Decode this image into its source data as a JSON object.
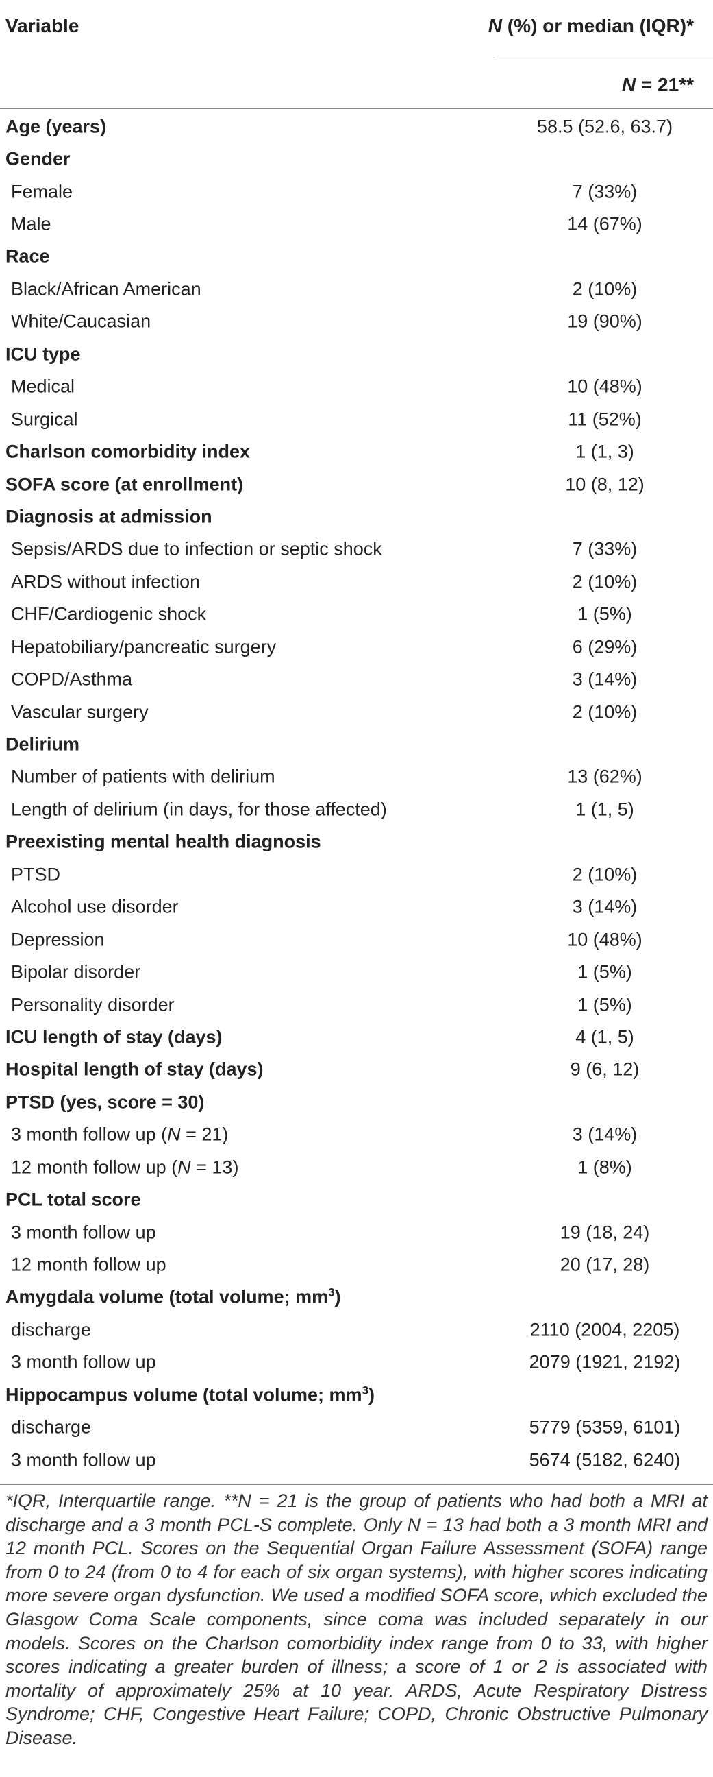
{
  "header": {
    "variable_label": "Variable",
    "stat_prefix": "N",
    "stat_suffix": " (%) or median (IQR)*",
    "n_prefix": "N",
    "n_suffix": " = 21**"
  },
  "rows": [
    {
      "type": "heading",
      "label": "Age (years)",
      "value": "58.5 (52.6, 63.7)"
    },
    {
      "type": "heading",
      "label": "Gender",
      "value": ""
    },
    {
      "type": "sub",
      "label": "Female",
      "value": "7 (33%)"
    },
    {
      "type": "sub",
      "label": "Male",
      "value": "14 (67%)"
    },
    {
      "type": "heading",
      "label": "Race",
      "value": ""
    },
    {
      "type": "sub",
      "label": "Black/African American",
      "value": "2 (10%)"
    },
    {
      "type": "sub",
      "label": "White/Caucasian",
      "value": "19 (90%)"
    },
    {
      "type": "heading",
      "label": "ICU type",
      "value": ""
    },
    {
      "type": "sub",
      "label": "Medical",
      "value": "10 (48%)"
    },
    {
      "type": "sub",
      "label": "Surgical",
      "value": "11 (52%)"
    },
    {
      "type": "heading",
      "label": "Charlson comorbidity index",
      "value": "1 (1, 3)"
    },
    {
      "type": "heading",
      "label": "SOFA score (at enrollment)",
      "value": "10 (8, 12)"
    },
    {
      "type": "heading",
      "label": "Diagnosis at admission",
      "value": ""
    },
    {
      "type": "sub",
      "label": "Sepsis/ARDS due to infection or septic shock",
      "value": "7 (33%)"
    },
    {
      "type": "sub",
      "label": "ARDS without infection",
      "value": "2 (10%)"
    },
    {
      "type": "sub",
      "label": "CHF/Cardiogenic shock",
      "value": "1 (5%)"
    },
    {
      "type": "sub",
      "label": "Hepatobiliary/pancreatic surgery",
      "value": "6 (29%)"
    },
    {
      "type": "sub",
      "label": "COPD/Asthma",
      "value": "3 (14%)"
    },
    {
      "type": "sub",
      "label": "Vascular surgery",
      "value": "2 (10%)"
    },
    {
      "type": "heading",
      "label": "Delirium",
      "value": ""
    },
    {
      "type": "sub",
      "label": "Number of patients with delirium",
      "value": "13 (62%)"
    },
    {
      "type": "sub",
      "label": "Length of delirium (in days, for those affected)",
      "value": "1 (1, 5)"
    },
    {
      "type": "heading",
      "label": "Preexisting mental health diagnosis",
      "value": ""
    },
    {
      "type": "sub",
      "label": "PTSD",
      "value": "2 (10%)"
    },
    {
      "type": "sub",
      "label": "Alcohol use disorder",
      "value": "3 (14%)"
    },
    {
      "type": "sub",
      "label": "Depression",
      "value": "10 (48%)"
    },
    {
      "type": "sub",
      "label": "Bipolar disorder",
      "value": "1 (5%)"
    },
    {
      "type": "sub",
      "label": "Personality disorder",
      "value": "1 (5%)"
    },
    {
      "type": "heading",
      "label": "ICU length of stay (days)",
      "value": "4 (1, 5)"
    },
    {
      "type": "heading",
      "label": "Hospital length of stay (days)",
      "value": "9 (6, 12)"
    },
    {
      "type": "heading",
      "label": "PTSD (yes, score = 30)",
      "value": ""
    },
    {
      "type": "sub",
      "label": "3 month follow up (",
      "label_italic": "N",
      "label_after": " = 21)",
      "value": "3 (14%)"
    },
    {
      "type": "sub",
      "label": "12 month follow up (",
      "label_italic": "N",
      "label_after": " = 13)",
      "value": "1 (8%)"
    },
    {
      "type": "heading",
      "label": "PCL total score",
      "value": ""
    },
    {
      "type": "sub",
      "label": "3 month follow up",
      "value": "19 (18, 24)"
    },
    {
      "type": "sub",
      "label": "12 month follow up",
      "value": "20 (17, 28)"
    },
    {
      "type": "heading",
      "label": "Amygdala volume (total volume; mm",
      "label_sup": "3",
      "label_after": ")",
      "value": ""
    },
    {
      "type": "sub",
      "label": "discharge",
      "value": "2110 (2004, 2205)"
    },
    {
      "type": "sub",
      "label": "3 month follow up",
      "value": "2079 (1921, 2192)"
    },
    {
      "type": "heading",
      "label": "Hippocampus volume (total volume; mm",
      "label_sup": "3",
      "label_after": ")",
      "value": ""
    },
    {
      "type": "sub",
      "label": "discharge",
      "value": "5779 (5359, 6101)"
    },
    {
      "type": "sub",
      "label": "3 month follow up",
      "value": "5674 (5182, 6240)"
    }
  ],
  "footnote": "*IQR, Interquartile range. **N = 21 is the group of patients who had both a MRI at discharge and a 3 month PCL-S complete. Only N = 13 had both a 3 month MRI and 12 month PCL. Scores on the Sequential Organ Failure Assessment (SOFA) range from 0 to 24 (from 0 to 4 for each of six organ systems), with higher scores indicating more severe organ dysfunction. We used a modified SOFA score, which excluded the Glasgow Coma Scale components, since coma was included separately in our models. Scores on the Charlson comorbidity index range from 0 to 33, with higher scores indicating a greater burden of illness; a score of 1 or 2 is associated with mortality of approximately 25% at 10 year. ARDS, Acute Respiratory Distress Syndrome; CHF, Congestive Heart Failure; COPD, Chronic Obstructive Pulmonary Disease."
}
